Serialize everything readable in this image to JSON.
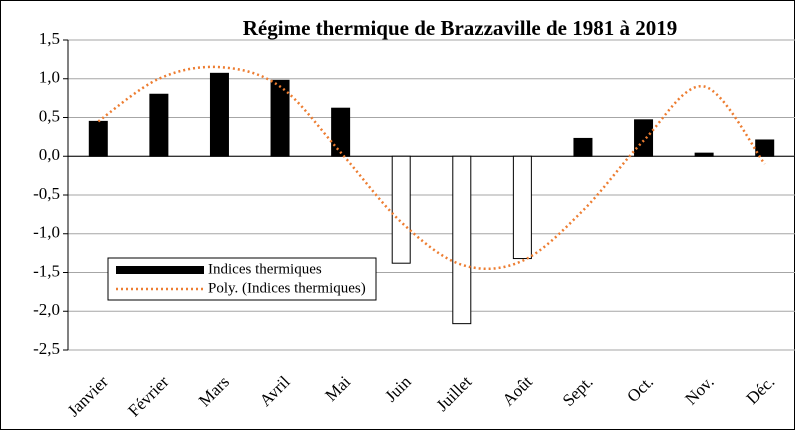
{
  "chart_data": {
    "type": "bar",
    "title": "Régime thermique de Brazzaville de 1981 à 2019",
    "categories": [
      "Janvier",
      "Février",
      "Mars",
      "Avril",
      "Mai",
      "Juin",
      "Juillet",
      "Août",
      "Sept.",
      "Oct.",
      "Nov.",
      "Déc."
    ],
    "series": [
      {
        "name": "Indices thermiques",
        "color": "#000000",
        "negative_color": "#ffffff",
        "values": [
          0.45,
          0.8,
          1.07,
          0.98,
          0.62,
          -1.38,
          -2.16,
          -1.32,
          0.23,
          0.47,
          0.04,
          0.21
        ]
      },
      {
        "name": "Poly. (Indices thermiques)",
        "type": "line",
        "color": "#ed7d31",
        "dashed": true,
        "values": [
          0.45,
          1.0,
          1.15,
          0.9,
          0.05,
          -0.85,
          -1.4,
          -1.35,
          -0.7,
          0.2,
          0.9,
          -0.1
        ]
      }
    ],
    "ylim": [
      -2.5,
      1.5
    ],
    "yticks": [
      {
        "value": -2.5,
        "label": "-2,5"
      },
      {
        "value": -2,
        "label": "-2,0"
      },
      {
        "value": -1.5,
        "label": "-1,5"
      },
      {
        "value": -1,
        "label": "-1,0"
      },
      {
        "value": -0.5,
        "label": "-0,5"
      },
      {
        "value": 0,
        "label": "0,0"
      },
      {
        "value": 0.5,
        "label": "0,5"
      },
      {
        "value": 1,
        "label": "1,0"
      },
      {
        "value": 1.5,
        "label": "1,5"
      }
    ],
    "grid": true,
    "legend": "lower left"
  }
}
